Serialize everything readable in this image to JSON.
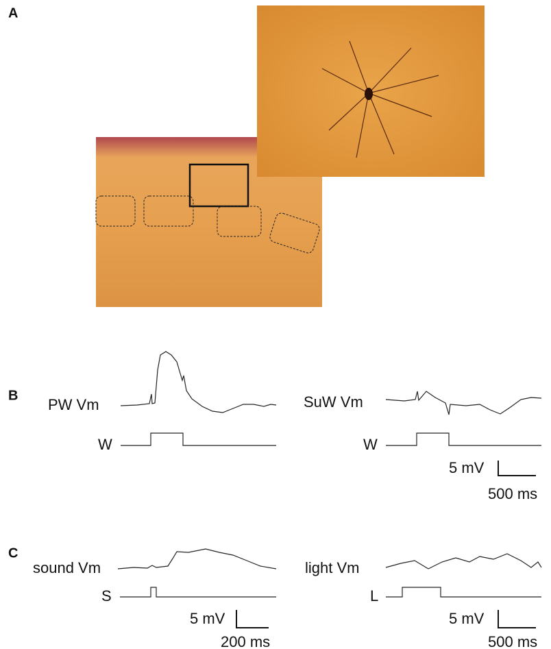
{
  "panels": {
    "a": {
      "label": "A"
    },
    "b": {
      "label": "B",
      "left": {
        "trace": "PW  Vm",
        "stimulus": "W"
      },
      "right": {
        "trace": "SuW Vm",
        "stimulus": "W"
      },
      "scale": {
        "amplitude": "5 mV",
        "time": "500 ms"
      }
    },
    "c": {
      "label": "C",
      "left": {
        "trace": "sound  Vm",
        "stimulus": "S",
        "scale": {
          "amplitude": "5 mV",
          "time": "200 ms"
        }
      },
      "right": {
        "trace": "light  Vm",
        "stimulus": "L",
        "scale": {
          "amplitude": "5 mV",
          "time": "500 ms"
        }
      }
    }
  }
}
